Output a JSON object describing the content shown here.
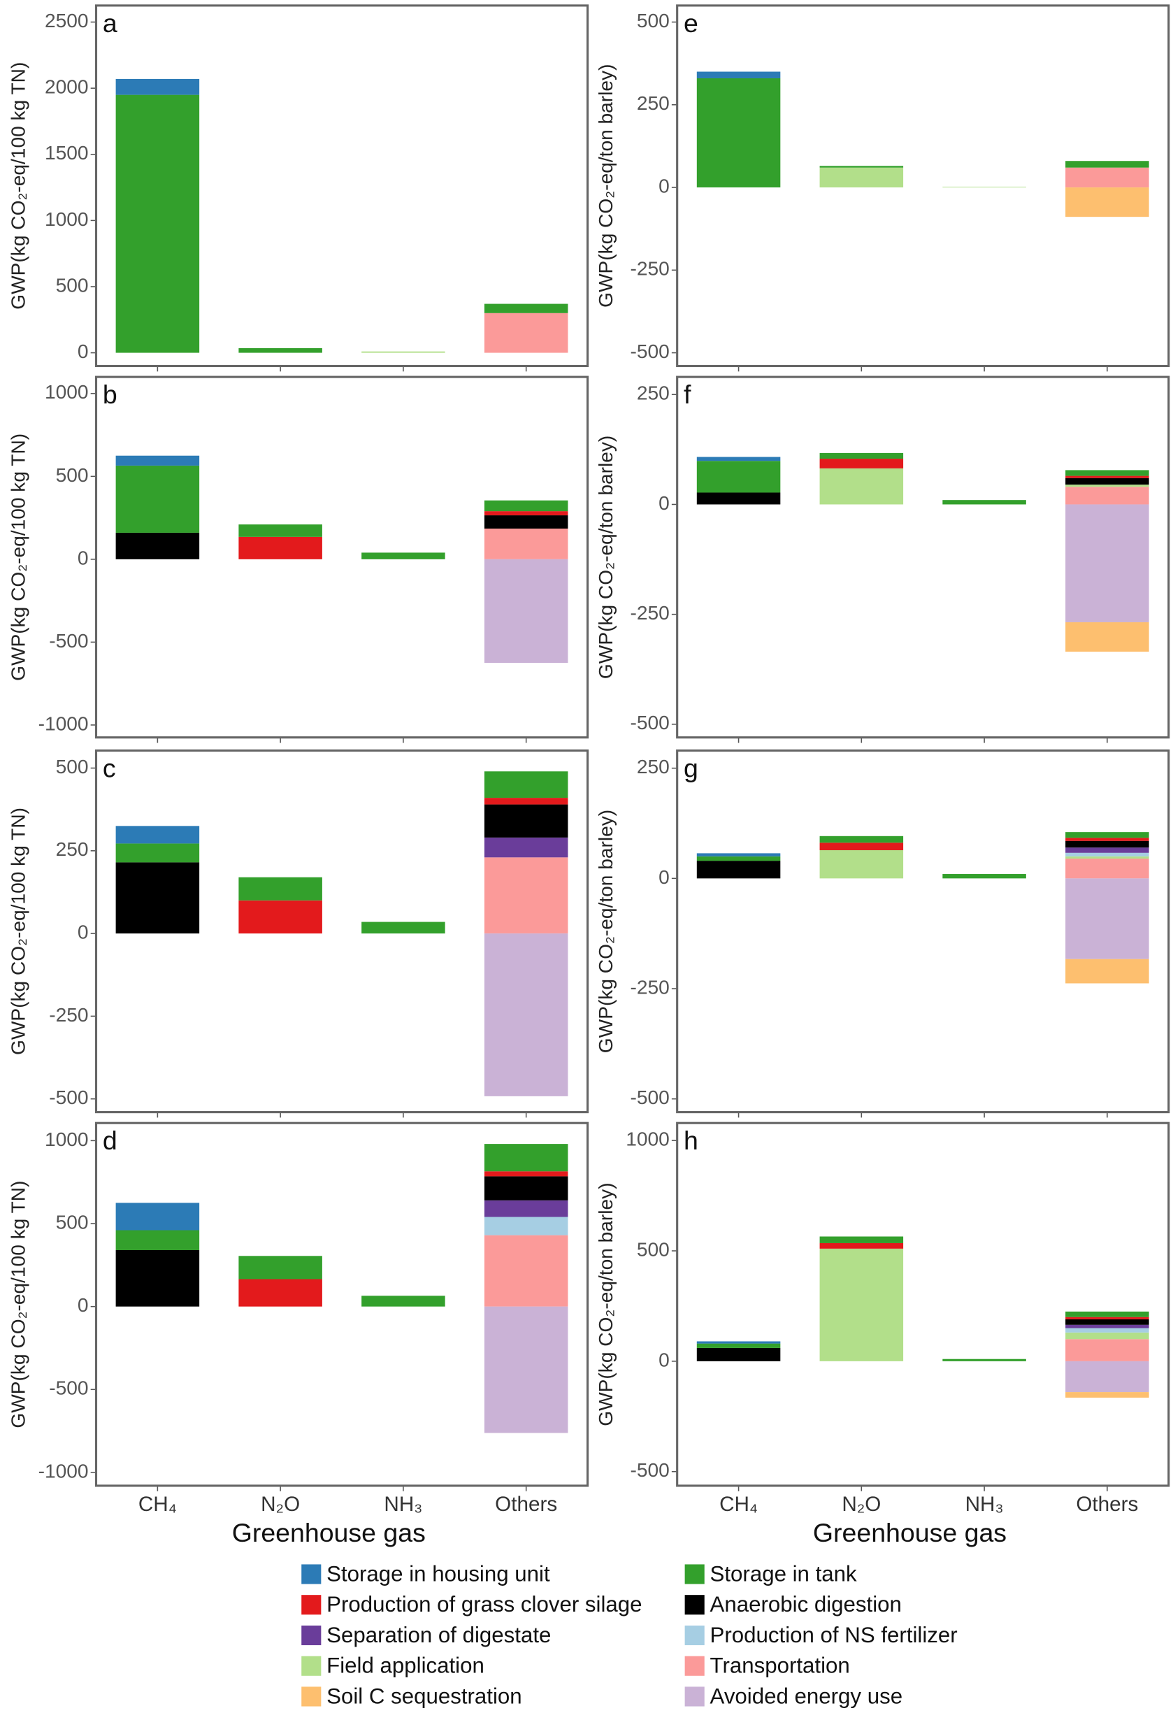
{
  "categories": [
    "CH₄",
    "N₂O",
    "NH₃",
    "Others"
  ],
  "x_label": "Greenhouse gas",
  "legend": [
    {
      "name": "Storage in housing unit",
      "color": "#2c7bb6"
    },
    {
      "name": "Storage in tank",
      "color": "#33a02c"
    },
    {
      "name": "Production of grass clover silage",
      "color": "#e31a1c"
    },
    {
      "name": "Anaerobic digestion",
      "color": "#000000"
    },
    {
      "name": "Separation of digestate",
      "color": "#6a3d9a"
    },
    {
      "name": "Production of NS fertilizer",
      "color": "#a6cee3"
    },
    {
      "name": "Field application",
      "color": "#b2df8a"
    },
    {
      "name": "Transportation",
      "color": "#fb9a99"
    },
    {
      "name": "Soil C sequestration",
      "color": "#fdbf6f"
    },
    {
      "name": "Avoided energy use",
      "color": "#cab2d6"
    }
  ],
  "chart_data": [
    {
      "type": "bar",
      "stacked": true,
      "label": "a",
      "y_label": "GWP(kg CO₂-eq/100 kg TN)",
      "ylim": [
        -100,
        2625
      ],
      "yticks": [
        0,
        500,
        1000,
        1500,
        2000,
        2500
      ],
      "series": [
        {
          "values": [
            120,
            null,
            null,
            null
          ]
        },
        {
          "values": [
            1950,
            35,
            null,
            70
          ]
        },
        {
          "values": [
            null,
            null,
            null,
            null
          ]
        },
        {
          "values": [
            null,
            null,
            null,
            null
          ]
        },
        {
          "values": [
            null,
            null,
            null,
            null
          ]
        },
        {
          "values": [
            null,
            null,
            null,
            null
          ]
        },
        {
          "values": [
            null,
            null,
            10,
            null
          ]
        },
        {
          "values": [
            null,
            null,
            null,
            300
          ]
        },
        {
          "values": [
            null,
            null,
            null,
            null
          ]
        },
        {
          "values": [
            null,
            null,
            null,
            null
          ]
        }
      ]
    },
    {
      "type": "bar",
      "stacked": true,
      "label": "b",
      "y_label": "GWP(kg CO₂-eq/100 kg TN)",
      "ylim": [
        -1075,
        1100
      ],
      "yticks": [
        -1000,
        -500,
        0,
        500,
        1000
      ],
      "series": [
        {
          "values": [
            60,
            null,
            null,
            null
          ]
        },
        {
          "values": [
            405,
            75,
            40,
            65
          ]
        },
        {
          "values": [
            null,
            135,
            null,
            25
          ]
        },
        {
          "values": [
            160,
            null,
            null,
            80
          ]
        },
        {
          "values": [
            null,
            null,
            null,
            null
          ]
        },
        {
          "values": [
            null,
            null,
            null,
            null
          ]
        },
        {
          "values": [
            null,
            null,
            null,
            null
          ]
        },
        {
          "values": [
            null,
            null,
            null,
            185
          ]
        },
        {
          "values": [
            null,
            null,
            null,
            null
          ]
        },
        {
          "values": [
            null,
            null,
            null,
            -625
          ]
        }
      ]
    },
    {
      "type": "bar",
      "stacked": true,
      "label": "c",
      "y_label": "GWP(kg CO₂-eq/100 kg TN)",
      "ylim": [
        -540,
        553
      ],
      "yticks": [
        -500,
        -250,
        0,
        250,
        500
      ],
      "series": [
        {
          "values": [
            53,
            null,
            null,
            null
          ]
        },
        {
          "values": [
            57,
            70,
            35,
            80
          ]
        },
        {
          "values": [
            null,
            100,
            null,
            20
          ]
        },
        {
          "values": [
            215,
            null,
            null,
            100
          ]
        },
        {
          "values": [
            null,
            null,
            null,
            60
          ]
        },
        {
          "values": [
            null,
            null,
            null,
            null
          ]
        },
        {
          "values": [
            null,
            null,
            null,
            null
          ]
        },
        {
          "values": [
            null,
            null,
            null,
            230
          ]
        },
        {
          "values": [
            null,
            null,
            null,
            null
          ]
        },
        {
          "values": [
            null,
            null,
            null,
            -492
          ]
        }
      ]
    },
    {
      "type": "bar",
      "stacked": true,
      "label": "d",
      "y_label": "GWP(kg CO₂-eq/100 kg TN)",
      "ylim": [
        -1080,
        1106
      ],
      "yticks": [
        -1000,
        -500,
        0,
        500,
        1000
      ],
      "show_x": true,
      "series": [
        {
          "values": [
            165,
            null,
            null,
            null
          ]
        },
        {
          "values": [
            120,
            140,
            65,
            165
          ]
        },
        {
          "values": [
            null,
            165,
            null,
            30
          ]
        },
        {
          "values": [
            340,
            null,
            null,
            145
          ]
        },
        {
          "values": [
            null,
            null,
            null,
            100
          ]
        },
        {
          "values": [
            null,
            null,
            null,
            110
          ]
        },
        {
          "values": [
            null,
            null,
            null,
            null
          ]
        },
        {
          "values": [
            null,
            null,
            null,
            430
          ]
        },
        {
          "values": [
            null,
            null,
            null,
            null
          ]
        },
        {
          "values": [
            null,
            null,
            null,
            -762
          ]
        }
      ]
    },
    {
      "type": "bar",
      "stacked": true,
      "label": "e",
      "y_label": "GWP(kg CO₂-eq/ton barley)",
      "ylim": [
        -540,
        550
      ],
      "yticks": [
        -500,
        -250,
        0,
        250,
        500
      ],
      "series": [
        {
          "values": [
            20,
            null,
            null,
            null
          ]
        },
        {
          "values": [
            330,
            5,
            null,
            20
          ]
        },
        {
          "values": [
            null,
            null,
            null,
            null
          ]
        },
        {
          "values": [
            null,
            null,
            null,
            null
          ]
        },
        {
          "values": [
            null,
            null,
            null,
            null
          ]
        },
        {
          "values": [
            null,
            null,
            null,
            null
          ]
        },
        {
          "values": [
            null,
            60,
            2,
            null
          ]
        },
        {
          "values": [
            null,
            null,
            null,
            60
          ]
        },
        {
          "values": [
            null,
            null,
            null,
            -89
          ]
        },
        {
          "values": [
            null,
            null,
            null,
            null
          ]
        }
      ]
    },
    {
      "type": "bar",
      "stacked": true,
      "label": "f",
      "y_label": "GWP(kg CO₂-eq/ton barley)",
      "ylim": [
        -530,
        290
      ],
      "yticks": [
        -500,
        -250,
        0,
        250
      ],
      "series": [
        {
          "values": [
            9,
            null,
            null,
            null
          ]
        },
        {
          "values": [
            72,
            13,
            10,
            13
          ]
        },
        {
          "values": [
            null,
            22,
            null,
            5
          ]
        },
        {
          "values": [
            27,
            null,
            null,
            15
          ]
        },
        {
          "values": [
            null,
            null,
            null,
            null
          ]
        },
        {
          "values": [
            null,
            null,
            null,
            null
          ]
        },
        {
          "values": [
            null,
            82,
            null,
            5
          ]
        },
        {
          "values": [
            null,
            null,
            null,
            40
          ]
        },
        {
          "values": [
            null,
            null,
            null,
            -67
          ]
        },
        {
          "values": [
            null,
            null,
            null,
            -268
          ]
        }
      ]
    },
    {
      "type": "bar",
      "stacked": true,
      "label": "g",
      "y_label": "GWP(kg CO₂-eq/ton barley)",
      "ylim": [
        -530,
        290
      ],
      "yticks": [
        -500,
        -250,
        0,
        250
      ],
      "series": [
        {
          "values": [
            7,
            null,
            null,
            null
          ]
        },
        {
          "values": [
            10,
            15,
            10,
            13
          ]
        },
        {
          "values": [
            null,
            17,
            null,
            7
          ]
        },
        {
          "values": [
            40,
            null,
            null,
            15
          ]
        },
        {
          "values": [
            null,
            null,
            null,
            12
          ]
        },
        {
          "values": [
            null,
            null,
            null,
            8
          ]
        },
        {
          "values": [
            null,
            64,
            null,
            5
          ]
        },
        {
          "values": [
            null,
            null,
            null,
            45
          ]
        },
        {
          "values": [
            null,
            null,
            null,
            -55
          ]
        },
        {
          "values": [
            null,
            null,
            null,
            -183
          ]
        }
      ]
    },
    {
      "type": "bar",
      "stacked": true,
      "label": "h",
      "y_label": "GWP(kg CO₂-eq/ton barley)",
      "ylim": [
        -564,
        1079
      ],
      "yticks": [
        -500,
        0,
        500,
        1000
      ],
      "show_x": true,
      "series": [
        {
          "values": [
            10,
            null,
            null,
            null
          ]
        },
        {
          "values": [
            20,
            30,
            10,
            25
          ]
        },
        {
          "values": [
            null,
            25,
            null,
            10
          ]
        },
        {
          "values": [
            60,
            null,
            null,
            25
          ]
        },
        {
          "values": [
            null,
            null,
            null,
            15
          ]
        },
        {
          "values": [
            null,
            null,
            null,
            20
          ]
        },
        {
          "values": [
            null,
            510,
            null,
            30
          ]
        },
        {
          "values": [
            null,
            null,
            null,
            100
          ]
        },
        {
          "values": [
            null,
            null,
            null,
            -25
          ]
        },
        {
          "values": [
            null,
            null,
            null,
            -140
          ]
        }
      ]
    }
  ]
}
